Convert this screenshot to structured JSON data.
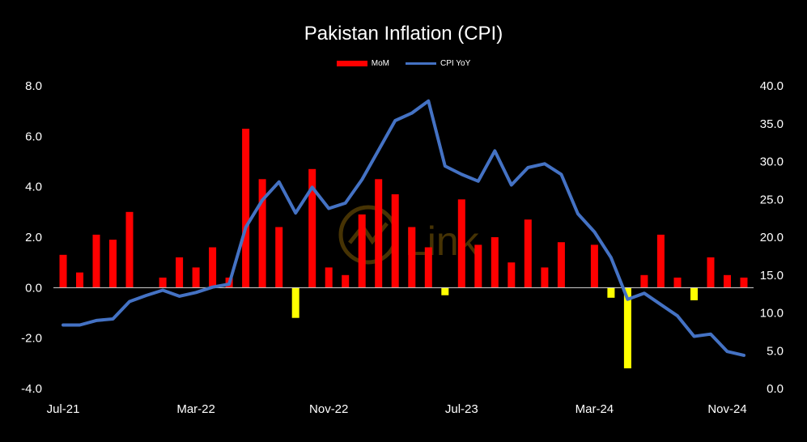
{
  "chart_data": {
    "type": "bar+line",
    "title": "Pakistan Inflation (CPI)",
    "legend_position": "top-center",
    "categories": [
      "Jul-21",
      "Aug-21",
      "Sep-21",
      "Oct-21",
      "Nov-21",
      "Dec-21",
      "Jan-22",
      "Feb-22",
      "Mar-22",
      "Apr-22",
      "May-22",
      "Jun-22",
      "Jul-22",
      "Aug-22",
      "Sep-22",
      "Oct-22",
      "Nov-22",
      "Dec-22",
      "Jan-23",
      "Feb-23",
      "Mar-23",
      "Apr-23",
      "May-23",
      "Jun-23",
      "Jul-23",
      "Aug-23",
      "Sep-23",
      "Oct-23",
      "Nov-23",
      "Dec-23",
      "Jan-24",
      "Feb-24",
      "Mar-24",
      "Apr-24",
      "May-24",
      "Jun-24",
      "Jul-24",
      "Aug-24",
      "Sep-24",
      "Oct-24",
      "Nov-24",
      "Dec-24"
    ],
    "x_tick_labels": [
      "Jul-21",
      "Mar-22",
      "Nov-22",
      "Jul-23",
      "Mar-24",
      "Nov-24"
    ],
    "series": [
      {
        "name": "MoM",
        "type": "bar",
        "axis": "left",
        "color_positive": "#ff0000",
        "color_negative": "#ffff00",
        "values": [
          1.3,
          0.6,
          2.1,
          1.9,
          3.0,
          0.0,
          0.4,
          1.2,
          0.8,
          1.6,
          0.4,
          6.3,
          4.3,
          2.4,
          -1.2,
          4.7,
          0.8,
          0.5,
          2.9,
          4.3,
          3.7,
          2.4,
          1.6,
          -0.3,
          3.5,
          1.7,
          2.0,
          1.0,
          2.7,
          0.8,
          1.8,
          0.0,
          1.7,
          -0.4,
          -3.2,
          0.5,
          2.1,
          0.4,
          -0.5,
          1.2,
          0.5,
          0.4
        ]
      },
      {
        "name": "CPI YoY",
        "type": "line",
        "axis": "right",
        "color": "#4472c4",
        "values": [
          8.4,
          8.4,
          9.0,
          9.2,
          11.5,
          12.3,
          13.0,
          12.2,
          12.7,
          13.4,
          13.8,
          21.3,
          24.9,
          27.3,
          23.2,
          26.6,
          23.8,
          24.5,
          27.6,
          31.5,
          35.4,
          36.4,
          38.0,
          29.4,
          28.3,
          27.4,
          31.4,
          26.9,
          29.2,
          29.7,
          28.3,
          23.1,
          20.7,
          17.3,
          11.8,
          12.6,
          11.1,
          9.6,
          6.9,
          7.2,
          4.9,
          4.4
        ]
      }
    ],
    "left_axis": {
      "min": -4.0,
      "max": 8.0,
      "ticks": [
        "8.0",
        "6.0",
        "4.0",
        "2.0",
        "0.0",
        "-2.0",
        "-4.0"
      ]
    },
    "right_axis": {
      "min": 0.0,
      "max": 40.0,
      "ticks": [
        "40.0",
        "35.0",
        "30.0",
        "25.0",
        "20.0",
        "15.0",
        "10.0",
        "5.0",
        "0.0"
      ]
    },
    "grid": false
  },
  "watermark": {
    "text": "Link"
  }
}
